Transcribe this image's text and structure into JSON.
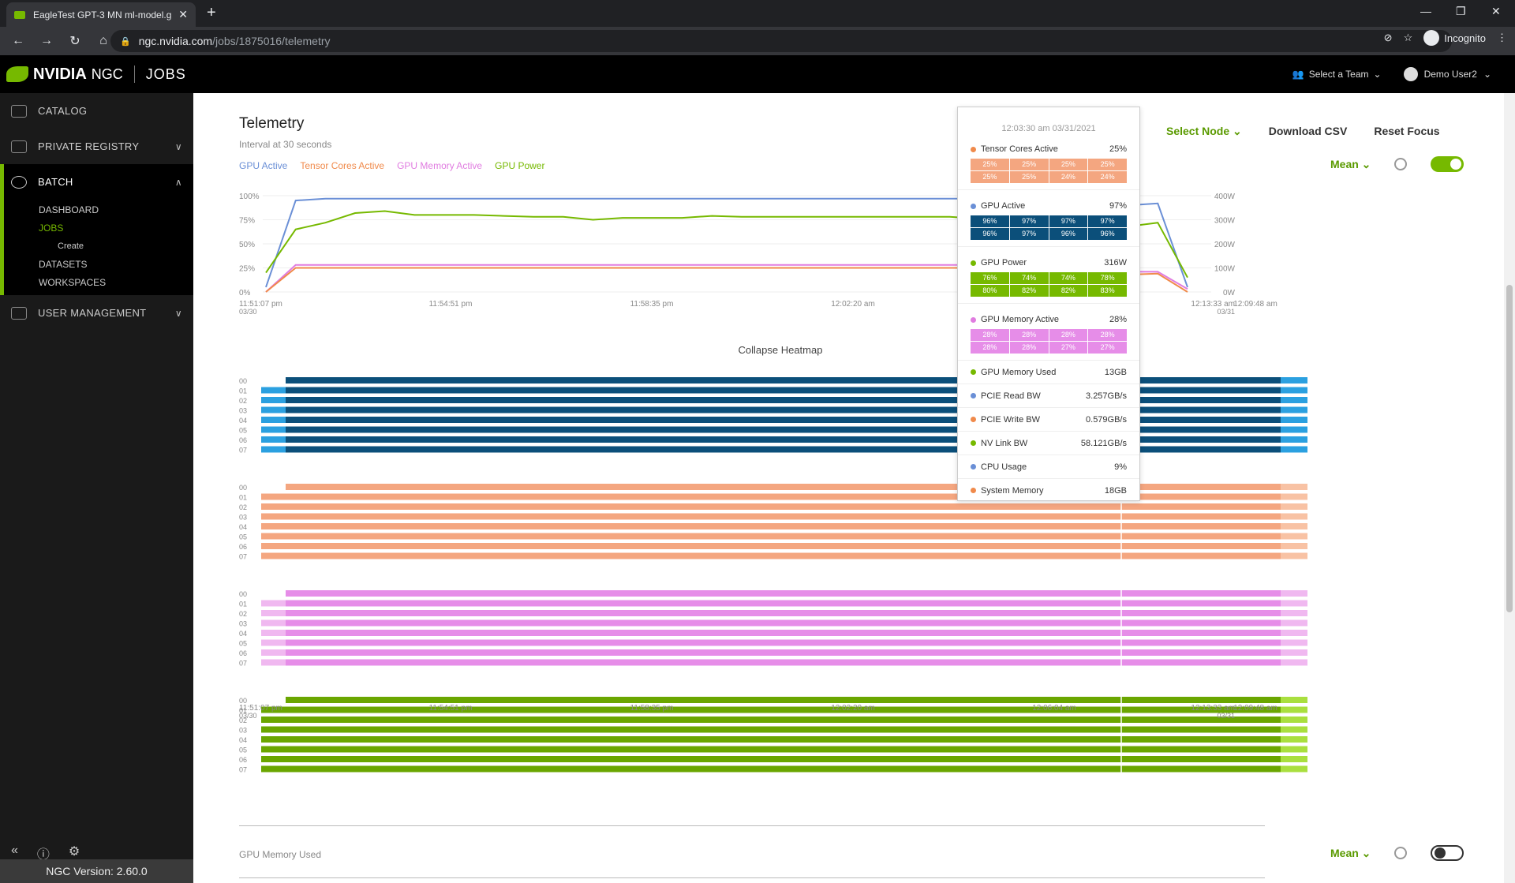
{
  "browser": {
    "tab_title": "EagleTest GPT-3 MN ml-model.g",
    "url_host": "ngc.nvidia.com",
    "url_path": "/jobs/1875016/telemetry",
    "incognito": "Incognito"
  },
  "header": {
    "brand": "NVIDIA",
    "product": "NGC",
    "section": "JOBS",
    "team": "Select a Team",
    "user": "Demo User2"
  },
  "sidebar": {
    "items": [
      {
        "label": "CATALOG"
      },
      {
        "label": "PRIVATE REGISTRY"
      },
      {
        "label": "BATCH"
      },
      {
        "label": "USER MANAGEMENT"
      }
    ],
    "batch_sub": [
      "DASHBOARD",
      "JOBS",
      "Create",
      "DATASETS",
      "WORKSPACES"
    ],
    "version": "NGC Version: 2.60.0"
  },
  "telemetry": {
    "title": "Telemetry",
    "interval": "Interval at 30 seconds",
    "legend": [
      {
        "name": "GPU Active",
        "color": "#6a8fd6"
      },
      {
        "name": "Tensor Cores Active",
        "color": "#f08a4b"
      },
      {
        "name": "GPU Memory Active",
        "color": "#e07ce0"
      },
      {
        "name": "GPU Power",
        "color": "#76b900"
      }
    ],
    "actions": {
      "select_node": "Select Node",
      "download": "Download CSV",
      "reset": "Reset Focus"
    },
    "mean": "Mean",
    "collapse": "Collapse Heatmap",
    "second_chart": "GPU Memory Used"
  },
  "chart_data": {
    "type": "line",
    "left_ticks": [
      "100%",
      "75%",
      "50%",
      "25%",
      "0%"
    ],
    "right_ticks": [
      "400W",
      "300W",
      "200W",
      "100W",
      "0W"
    ],
    "x_ticks": [
      "11:51:07 pm",
      "11:54:51 pm",
      "11:58:35 pm",
      "12:02:20 am",
      "12:06:04 am",
      "12:09:48 am",
      "12:13:33 am"
    ],
    "x_start_date": "03/30",
    "x_end_date": "03/31",
    "series": [
      {
        "name": "GPU Active",
        "color": "#6a8fd6",
        "values": [
          5,
          95,
          97,
          97,
          97,
          97,
          97,
          97,
          97,
          97,
          97,
          97,
          97,
          97,
          97,
          97,
          97,
          97,
          97,
          97,
          97,
          97,
          97,
          97,
          97,
          96,
          40,
          0,
          37,
          90,
          92,
          5
        ]
      },
      {
        "name": "GPU Power",
        "color": "#76b900",
        "values": [
          20,
          65,
          72,
          82,
          84,
          80,
          80,
          80,
          79,
          78,
          78,
          75,
          77,
          77,
          77,
          79,
          78,
          78,
          78,
          78,
          78,
          78,
          78,
          78,
          76,
          72,
          52,
          15,
          17,
          68,
          72,
          15
        ]
      },
      {
        "name": "GPU Memory Active",
        "color": "#e07ce0",
        "values": [
          0,
          28,
          28,
          28,
          28,
          28,
          28,
          28,
          28,
          28,
          28,
          28,
          28,
          28,
          28,
          28,
          28,
          28,
          28,
          28,
          28,
          28,
          28,
          28,
          28,
          27,
          22,
          1,
          10,
          21,
          21,
          3
        ]
      },
      {
        "name": "Tensor Cores Active",
        "color": "#f08a4b",
        "values": [
          0,
          25,
          25,
          25,
          25,
          25,
          25,
          25,
          25,
          25,
          25,
          25,
          25,
          25,
          25,
          25,
          25,
          25,
          25,
          25,
          25,
          25,
          25,
          25,
          25,
          24,
          20,
          0,
          10,
          18,
          19,
          0
        ]
      }
    ],
    "heatmap_rows": [
      "00",
      "01",
      "02",
      "03",
      "04",
      "05",
      "06",
      "07"
    ]
  },
  "tooltip": {
    "timestamp": "12:03:30 am 03/31/2021",
    "sections": [
      {
        "label": "Tensor Cores Active",
        "value": "25%",
        "color": "#f08a4b",
        "cells": [
          "25%",
          "25%",
          "25%",
          "25%",
          "25%",
          "25%",
          "24%",
          "24%"
        ],
        "cell_bg": "#f4a680"
      },
      {
        "label": "GPU Active",
        "value": "97%",
        "color": "#6a8fd6",
        "cells": [
          "96%",
          "97%",
          "97%",
          "97%",
          "96%",
          "97%",
          "96%",
          "96%"
        ],
        "cell_bg": "#0b4f7a"
      },
      {
        "label": "GPU Power",
        "value": "316W",
        "color": "#76b900",
        "cells": [
          "76%",
          "74%",
          "74%",
          "78%",
          "80%",
          "82%",
          "82%",
          "83%"
        ],
        "cell_bg": "#76b900"
      },
      {
        "label": "GPU Memory Active",
        "value": "28%",
        "color": "#e07ce0",
        "cells": [
          "28%",
          "28%",
          "28%",
          "28%",
          "28%",
          "28%",
          "27%",
          "27%"
        ],
        "cell_bg": "#e68de8"
      }
    ],
    "simple": [
      {
        "label": "GPU Memory Used",
        "value": "13GB",
        "color": "#76b900"
      },
      {
        "label": "PCIE Read BW",
        "value": "3.257GB/s",
        "color": "#6a8fd6"
      },
      {
        "label": "PCIE Write BW",
        "value": "0.579GB/s",
        "color": "#f08a4b"
      },
      {
        "label": "NV Link BW",
        "value": "58.121GB/s",
        "color": "#76b900"
      },
      {
        "label": "CPU Usage",
        "value": "9%",
        "color": "#6a8fd6"
      },
      {
        "label": "System Memory",
        "value": "18GB",
        "color": "#f08a4b"
      }
    ]
  }
}
